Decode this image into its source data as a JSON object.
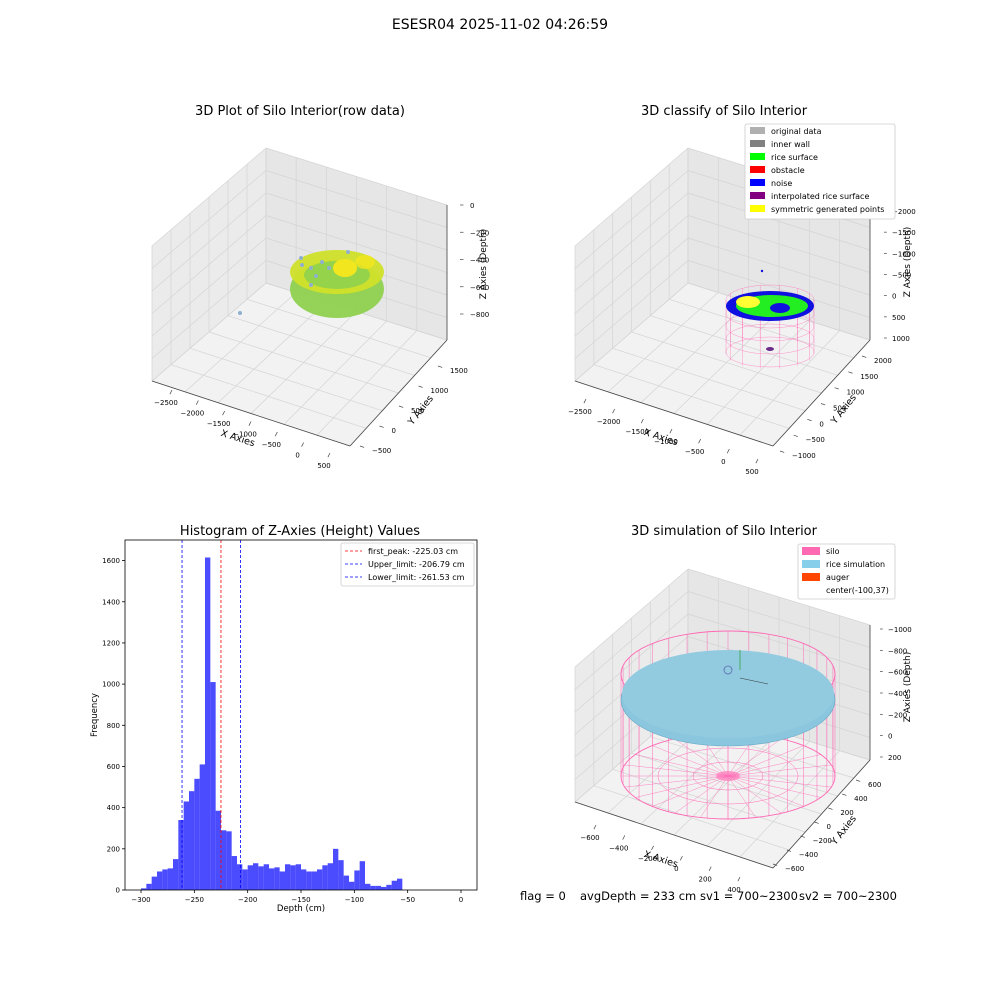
{
  "suptitle": "ESESR04 2025-11-02 04:26:59",
  "chart_data": [
    {
      "type": "scatter",
      "title": "3D Plot of Silo Interior(row data)",
      "xlabel": "X Axies",
      "ylabel": "Y Axies",
      "zlabel": "Z Axies (Depth)",
      "x_ticks": [
        -2500,
        -2000,
        -1500,
        -1000,
        -500,
        0,
        500
      ],
      "y_ticks": [
        -500,
        0,
        500,
        1000,
        1500
      ],
      "z_ticks": [
        -800,
        -600,
        -400,
        -200,
        0
      ],
      "colors": {
        "surface_low": "#8fd14f",
        "surface_mid": "#cfe02a",
        "surface_high": "#f2e61e",
        "noise_point": "#8fb0cf"
      },
      "grid": true
    },
    {
      "type": "scatter",
      "title": "3D classify of Silo Interior",
      "xlabel": "X Axies",
      "ylabel": "Y Axies",
      "zlabel": "Z Axies (Depth)",
      "x_ticks": [
        -2500,
        -2000,
        -1500,
        -1000,
        -500,
        0,
        500
      ],
      "y_ticks": [
        -1000,
        -500,
        0,
        500,
        1000,
        1500,
        2000
      ],
      "z_ticks": [
        -2000,
        -1500,
        -1000,
        -500,
        0,
        500,
        1000
      ],
      "legend": [
        {
          "label": "original data",
          "color": "#b0b0b0"
        },
        {
          "label": "inner wall",
          "color": "#808080"
        },
        {
          "label": "rice surface",
          "color": "#00ff00"
        },
        {
          "label": "obstacle",
          "color": "#ff0000"
        },
        {
          "label": "noise",
          "color": "#0000ff"
        },
        {
          "label": "interpolated rice surface",
          "color": "#800080"
        },
        {
          "label": "symmetric generated points",
          "color": "#ffff00"
        }
      ],
      "legend_position": "top-right",
      "grid": true
    },
    {
      "type": "bar",
      "title": "Histogram of Z-Axies (Height) Values",
      "xlabel": "Depth (cm)",
      "ylabel": "Frequency",
      "xlim": [
        -315,
        15
      ],
      "ylim": [
        0,
        1700
      ],
      "x_ticks": [
        -300,
        -250,
        -200,
        -150,
        -100,
        -50,
        0
      ],
      "y_ticks": [
        0,
        200,
        400,
        600,
        800,
        1000,
        1200,
        1400,
        1600
      ],
      "bin_width": 5,
      "bin_edges_start": -300,
      "values": [
        8,
        30,
        65,
        90,
        100,
        105,
        150,
        340,
        430,
        480,
        540,
        610,
        1615,
        1010,
        385,
        290,
        285,
        165,
        125,
        100,
        120,
        130,
        115,
        125,
        105,
        110,
        90,
        125,
        120,
        125,
        100,
        90,
        90,
        100,
        120,
        130,
        200,
        145,
        70,
        40,
        95,
        140,
        30,
        20,
        20,
        15,
        25,
        45,
        55
      ],
      "bar_color": "#0000ff",
      "lines": [
        {
          "label": "first_peak: -225.03 cm",
          "x": -225.03,
          "color": "#ff0000"
        },
        {
          "label": "Upper_limit: -206.79 cm",
          "x": -206.79,
          "color": "#0000ff"
        },
        {
          "label": "Lower_limit: -261.53 cm",
          "x": -261.53,
          "color": "#0000ff"
        }
      ],
      "legend_position": "top-right",
      "grid": false
    },
    {
      "type": "surface",
      "title": "3D simulation of Silo Interior",
      "xlabel": "X Axies",
      "ylabel": "Y Axies",
      "zlabel": "Z Axies (Depth)",
      "x_ticks": [
        -600,
        -400,
        -200,
        0,
        200,
        400
      ],
      "y_ticks": [
        -600,
        -400,
        -200,
        0,
        200,
        400,
        600
      ],
      "z_ticks": [
        -1000,
        -800,
        -600,
        -400,
        -200,
        0,
        200
      ],
      "legend": [
        {
          "label": "silo",
          "color": "#ff69b4"
        },
        {
          "label": "rice simulation",
          "color": "#87ceeb"
        },
        {
          "label": "auger",
          "color": "#ff4500"
        },
        {
          "label": "center(-100,37)",
          "color": ""
        }
      ],
      "legend_position": "top-right",
      "grid": true
    }
  ],
  "status": {
    "flag": "flag = 0",
    "avg_depth": "avgDepth = 233 cm",
    "sv1": "sv1 = 700~2300",
    "sv2": "sv2 = 700~2300"
  }
}
